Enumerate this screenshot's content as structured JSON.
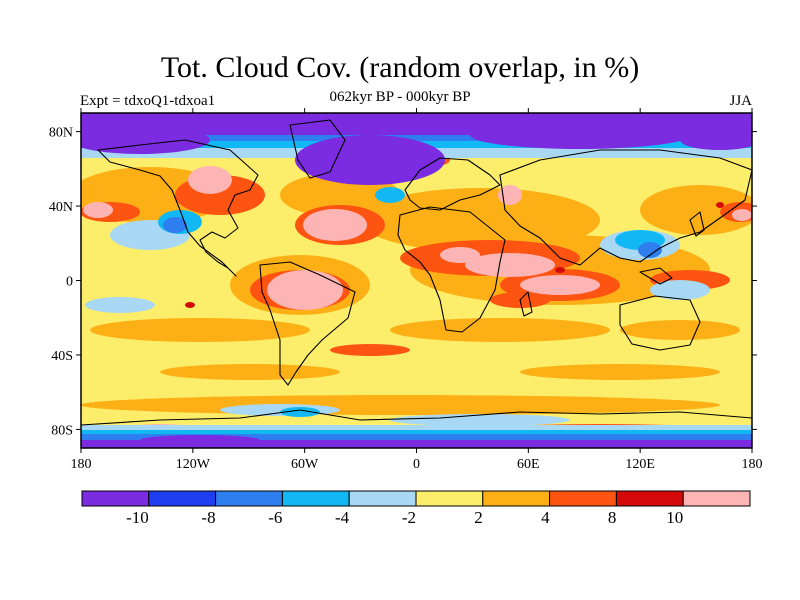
{
  "title": "Tot. Cloud Cov. (random overlap, in %)",
  "experiment_label": "Expt = tdxoQ1-tdxoa1",
  "period_label": "062kyr BP - 000kyr BP",
  "season_label": "JJA",
  "map": {
    "projection": "cylindrical equidistant",
    "lon_range": [
      -180,
      180
    ],
    "lat_range": [
      -90,
      90
    ],
    "x_ticks": [
      {
        "value": -180,
        "label": "180"
      },
      {
        "value": -120,
        "label": "120W"
      },
      {
        "value": -60,
        "label": "60W"
      },
      {
        "value": 0,
        "label": "0"
      },
      {
        "value": 60,
        "label": "60E"
      },
      {
        "value": 120,
        "label": "120E"
      },
      {
        "value": 180,
        "label": "180"
      }
    ],
    "y_ticks": [
      {
        "value": 80,
        "label": "80N"
      },
      {
        "value": 40,
        "label": "40N"
      },
      {
        "value": 0,
        "label": "0"
      },
      {
        "value": -40,
        "label": "40S"
      },
      {
        "value": -80,
        "label": "80S"
      }
    ]
  },
  "colorbar": {
    "colors": [
      "#7b2be0",
      "#1f3ef0",
      "#2f7ef0",
      "#12b8f4",
      "#a8d8f4",
      "#fcee6a",
      "#fdb016",
      "#fd5412",
      "#d40a0a",
      "#fcb4b4"
    ],
    "labels": [
      {
        "after_box": 1,
        "text": "-10"
      },
      {
        "after_box": 2,
        "text": "-8"
      },
      {
        "after_box": 3,
        "text": "-6"
      },
      {
        "after_box": 4,
        "text": "-4"
      },
      {
        "after_box": 5,
        "text": "-2"
      },
      {
        "after_box": 6,
        "text": "2"
      },
      {
        "after_box": 7,
        "text": "4"
      },
      {
        "after_box": 8,
        "text": "8"
      },
      {
        "after_box": 9,
        "text": "10"
      }
    ]
  }
}
